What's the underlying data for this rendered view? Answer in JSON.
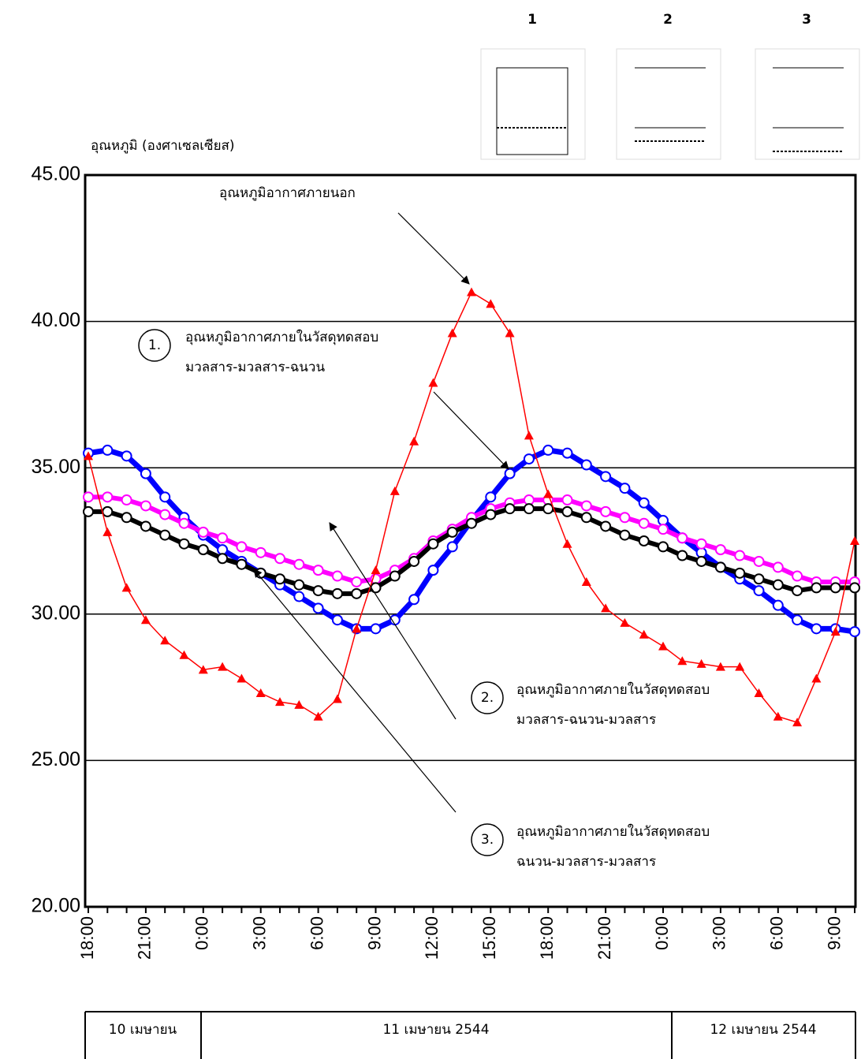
{
  "chart_data": {
    "type": "line",
    "y_label": "อุณหภูมิ (องศาเซลเซียส)",
    "categories": [
      "18:00",
      null,
      null,
      "21:00",
      null,
      null,
      "0:00",
      null,
      null,
      "3:00",
      null,
      null,
      "6:00",
      null,
      null,
      "9:00",
      null,
      null,
      "12:00",
      null,
      null,
      "15:00",
      null,
      null,
      "18:00",
      null,
      null,
      "21:00",
      null,
      null,
      "0:00",
      null,
      null,
      "3:00",
      null,
      null,
      "6:00",
      null,
      null,
      "9:00",
      null
    ],
    "ylim": [
      20,
      45
    ],
    "yticks": [
      {
        "value": 20,
        "label": "20.00"
      },
      {
        "value": 25,
        "label": "25.00"
      },
      {
        "value": 30,
        "label": "30.00"
      },
      {
        "value": 35,
        "label": "35.00"
      },
      {
        "value": 40,
        "label": "40.00"
      },
      {
        "value": 45,
        "label": "45.00"
      }
    ],
    "grid": true,
    "series": [
      {
        "color": "#ff0000",
        "marker": "triangle",
        "values": [
          35.4,
          32.8,
          30.9,
          29.8,
          29.1,
          28.6,
          28.1,
          28.2,
          27.8,
          27.3,
          27.0,
          26.9,
          26.5,
          27.1,
          29.5,
          31.5,
          34.2,
          35.9,
          37.9,
          39.6,
          41.0,
          40.6,
          39.6,
          36.1,
          34.1,
          32.4,
          31.1,
          30.2,
          29.7,
          29.3,
          28.9,
          28.4,
          28.3,
          28.2,
          28.2,
          27.3,
          26.5,
          26.3,
          27.8,
          29.4,
          32.5
        ]
      },
      {
        "color": "#0000ff",
        "marker": "circle",
        "values": [
          35.5,
          35.6,
          35.4,
          34.8,
          34.0,
          33.3,
          32.7,
          32.2,
          31.8,
          31.4,
          31.0,
          30.6,
          30.2,
          29.8,
          29.5,
          29.5,
          29.8,
          30.5,
          31.5,
          32.3,
          33.2,
          34.0,
          34.8,
          35.3,
          35.6,
          35.5,
          35.1,
          34.7,
          34.3,
          33.8,
          33.2,
          32.6,
          32.1,
          31.6,
          31.2,
          30.8,
          30.3,
          29.8,
          29.5,
          29.5,
          29.4
        ]
      },
      {
        "color": "#ff00ff",
        "marker": "circle",
        "values": [
          34.0,
          34.0,
          33.9,
          33.7,
          33.4,
          33.1,
          32.8,
          32.6,
          32.3,
          32.1,
          31.9,
          31.7,
          31.5,
          31.3,
          31.1,
          31.2,
          31.5,
          31.9,
          32.5,
          32.9,
          33.3,
          33.6,
          33.8,
          33.9,
          33.9,
          33.9,
          33.7,
          33.5,
          33.3,
          33.1,
          32.9,
          32.6,
          32.4,
          32.2,
          32.0,
          31.8,
          31.6,
          31.3,
          31.1,
          31.1,
          31.1
        ]
      },
      {
        "color": "#000000",
        "marker": "circle",
        "values": [
          33.5,
          33.5,
          33.3,
          33.0,
          32.7,
          32.4,
          32.2,
          31.9,
          31.7,
          31.4,
          31.2,
          31.0,
          30.8,
          30.7,
          30.7,
          30.9,
          31.3,
          31.8,
          32.4,
          32.8,
          33.1,
          33.4,
          33.6,
          33.6,
          33.6,
          33.5,
          33.3,
          33.0,
          32.7,
          32.5,
          32.3,
          32.0,
          31.8,
          31.6,
          31.4,
          31.2,
          31.0,
          30.8,
          30.9,
          30.9,
          30.9
        ]
      }
    ],
    "annotations": [
      {
        "lines": [
          "อุณหภูมิอากาศภายนอก"
        ]
      },
      {
        "number": "1.",
        "lines": [
          "อุณหภูมิอากาศภายในวัสดุทดสอบ",
          "มวลสาร-มวลสาร-ฉนวน"
        ]
      },
      {
        "number": "2.",
        "lines": [
          "อุณหภูมิอากาศภายในวัสดุทดสอบ",
          "มวลสาร-ฉนวน-มวลสาร"
        ]
      },
      {
        "number": "3.",
        "lines": [
          "อุณหภูมิอากาศภายในวัสดุทดสอบ",
          "ฉนวน-มวลสาร-มวลสาร"
        ]
      }
    ],
    "dates": [
      "10 เมษายน",
      "11 เมษายน 2544",
      "12 เมษายน 2544"
    ],
    "diagram_labels": [
      "1",
      "2",
      "3"
    ]
  }
}
